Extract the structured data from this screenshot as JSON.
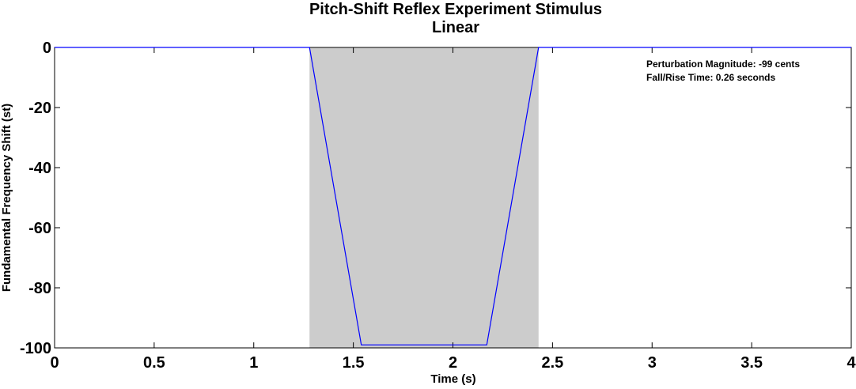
{
  "chart_data": {
    "type": "line",
    "title": "Pitch-Shift Reflex Experiment Stimulus",
    "subtitle": "Linear",
    "xlabel": "Time (s)",
    "ylabel": "Fundamental Frequency Shift (st)",
    "xlim": [
      0,
      4
    ],
    "ylim": [
      -100,
      0
    ],
    "x_ticks": [
      "0",
      "0.5",
      "1",
      "1.5",
      "2",
      "2.5",
      "3",
      "3.5",
      "4"
    ],
    "y_ticks": [
      "0",
      "-20",
      "-40",
      "-60",
      "-80",
      "-100"
    ],
    "grid": false,
    "line_color": "#0000ff",
    "shade_color": "#cccccc",
    "shaded_region": [
      1.28,
      2.43
    ],
    "series": [
      {
        "x": [
          0,
          1.28,
          1.54,
          2.17,
          2.43,
          4
        ],
        "y": [
          0,
          0,
          -99,
          -99,
          0,
          0
        ]
      }
    ],
    "annotations": [
      "Perturbation Magnitude: -99 cents",
      "Fall/Rise Time: 0.26 seconds"
    ]
  }
}
